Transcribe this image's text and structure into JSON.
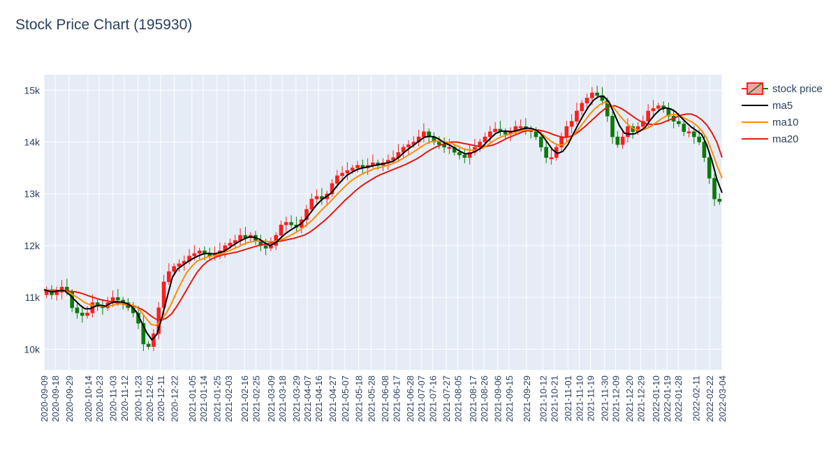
{
  "title": "Stock Price Chart (195930)",
  "colors": {
    "plot_bg": "#e5ecf6",
    "grid": "#ffffff",
    "up": "#ff1e1e",
    "down": "#0a7a0a",
    "ma5": "#000000",
    "ma10": "#ff8c00",
    "ma20": "#e8170f"
  },
  "chart_data": {
    "type": "candlestick",
    "title": "Stock Price Chart (195930)",
    "xlabel": "",
    "ylabel": "",
    "ylim": [
      9600,
      15300
    ],
    "xlim": [
      "2020-09-09",
      "2022-03-04"
    ],
    "grid": true,
    "legend_placement": "top-right",
    "y_ticks": [
      {
        "value": 10000,
        "label": "10k"
      },
      {
        "value": 11000,
        "label": "11k"
      },
      {
        "value": 12000,
        "label": "12k"
      },
      {
        "value": 13000,
        "label": "13k"
      },
      {
        "value": 14000,
        "label": "14k"
      },
      {
        "value": 15000,
        "label": "15k"
      }
    ],
    "x_ticks": [
      "2020-09-09",
      "2020-09-18",
      "2020-09-29",
      "2020-10-14",
      "2020-10-23",
      "2020-11-03",
      "2020-11-12",
      "2020-11-23",
      "2020-12-02",
      "2020-12-11",
      "2020-12-22",
      "2021-01-05",
      "2021-01-14",
      "2021-01-25",
      "2021-02-03",
      "2021-02-16",
      "2021-02-25",
      "2021-03-09",
      "2021-03-18",
      "2021-03-29",
      "2021-04-07",
      "2021-04-16",
      "2021-04-27",
      "2021-05-07",
      "2021-05-18",
      "2021-05-28",
      "2021-06-08",
      "2021-06-17",
      "2021-06-28",
      "2021-07-07",
      "2021-07-16",
      "2021-07-27",
      "2021-08-05",
      "2021-08-17",
      "2021-08-26",
      "2021-09-06",
      "2021-09-15",
      "2021-09-29",
      "2021-10-12",
      "2021-10-21",
      "2021-11-01",
      "2021-11-10",
      "2021-11-19",
      "2021-11-30",
      "2021-12-09",
      "2021-12-20",
      "2021-12-29",
      "2022-01-10",
      "2022-01-19",
      "2022-01-28",
      "2022-02-11",
      "2022-02-22",
      "2022-03-04"
    ],
    "series": [
      {
        "name": "stock price",
        "kind": "candlestick",
        "close": [
          11150,
          11050,
          11100,
          11200,
          11100,
          10800,
          10700,
          10650,
          10700,
          10900,
          10850,
          10800,
          10900,
          11000,
          10950,
          10900,
          10800,
          10700,
          10500,
          10100,
          10050,
          10300,
          10800,
          11300,
          11500,
          11600,
          11650,
          11700,
          11800,
          11850,
          11900,
          11850,
          11800,
          11850,
          11900,
          12000,
          12050,
          12100,
          12200,
          12150,
          12200,
          12100,
          12000,
          11950,
          12000,
          12200,
          12400,
          12450,
          12400,
          12350,
          12500,
          12700,
          12900,
          12950,
          12900,
          13000,
          13200,
          13350,
          13400,
          13450,
          13500,
          13550,
          13500,
          13550,
          13600,
          13550,
          13600,
          13650,
          13700,
          13800,
          13900,
          13950,
          14000,
          14100,
          14200,
          14100,
          14000,
          13950,
          13900,
          13900,
          13800,
          13750,
          13700,
          13800,
          13900,
          14000,
          14100,
          14200,
          14250,
          14200,
          14150,
          14200,
          14300,
          14300,
          14250,
          14200,
          14100,
          13900,
          13700,
          13700,
          13900,
          14100,
          14300,
          14400,
          14600,
          14750,
          14850,
          14950,
          14900,
          14800,
          14500,
          14100,
          13950,
          14100,
          14300,
          14200,
          14300,
          14400,
          14600,
          14650,
          14700,
          14650,
          14500,
          14400,
          14350,
          14200,
          14200,
          14100,
          14000,
          13700,
          13300,
          12900,
          12850
        ],
        "open": [
          11050,
          11150,
          11050,
          11100,
          11200,
          11100,
          10800,
          10700,
          10650,
          10700,
          10900,
          10850,
          10800,
          10900,
          11000,
          10950,
          10900,
          10800,
          10700,
          10500,
          10100,
          10050,
          10300,
          10800,
          11300,
          11500,
          11600,
          11650,
          11700,
          11800,
          11850,
          11900,
          11850,
          11800,
          11850,
          11900,
          12000,
          12050,
          12100,
          12200,
          12150,
          12200,
          12100,
          12000,
          11950,
          12000,
          12200,
          12400,
          12450,
          12400,
          12350,
          12500,
          12700,
          12900,
          12950,
          12900,
          13000,
          13200,
          13350,
          13400,
          13450,
          13500,
          13550,
          13500,
          13550,
          13600,
          13550,
          13600,
          13650,
          13700,
          13800,
          13900,
          13950,
          14000,
          14100,
          14200,
          14100,
          14000,
          13950,
          13900,
          13900,
          13800,
          13750,
          13700,
          13800,
          13900,
          14000,
          14100,
          14200,
          14250,
          14200,
          14150,
          14200,
          14300,
          14300,
          14250,
          14200,
          14100,
          13900,
          13700,
          13700,
          13900,
          14100,
          14300,
          14400,
          14600,
          14750,
          14850,
          14950,
          14900,
          14800,
          14500,
          14100,
          13950,
          14100,
          14300,
          14200,
          14300,
          14400,
          14600,
          14650,
          14700,
          14650,
          14500,
          14400,
          14350,
          14200,
          14200,
          14100,
          14000,
          13700,
          13300,
          12900
        ]
      },
      {
        "name": "ma5",
        "kind": "line",
        "values": [
          11150,
          11120,
          11110,
          11130,
          11130,
          11050,
          10950,
          10850,
          10780,
          10780,
          10830,
          10850,
          10830,
          10890,
          10920,
          10910,
          10890,
          10830,
          10720,
          10520,
          10320,
          10180,
          10290,
          10630,
          11010,
          11390,
          11550,
          11620,
          11690,
          11750,
          11800,
          11840,
          11850,
          11840,
          11860,
          11890,
          11950,
          12020,
          12080,
          12130,
          12170,
          12160,
          12120,
          12050,
          12000,
          12050,
          12140,
          12230,
          12300,
          12360,
          12420,
          12520,
          12650,
          12780,
          12880,
          12950,
          13020,
          13150,
          13260,
          13360,
          13420,
          13470,
          13500,
          13520,
          13540,
          13560,
          13580,
          13600,
          13630,
          13700,
          13790,
          13870,
          13940,
          14020,
          14090,
          14110,
          14100,
          14050,
          13980,
          13940,
          13880,
          13820,
          13770,
          13780,
          13820,
          13880,
          13980,
          14080,
          14170,
          14210,
          14210,
          14200,
          14220,
          14250,
          14270,
          14260,
          14220,
          14130,
          13990,
          13850,
          13780,
          13820,
          13950,
          14150,
          14340,
          14520,
          14680,
          14810,
          14880,
          14880,
          14770,
          14550,
          14320,
          14170,
          14150,
          14160,
          14210,
          14280,
          14420,
          14540,
          14630,
          14660,
          14640,
          14580,
          14480,
          14380,
          14290,
          14220,
          14150,
          13950,
          13650,
          13280,
          13020
        ]
      },
      {
        "name": "ma10",
        "kind": "line",
        "values": [
          11150,
          11140,
          11120,
          11120,
          11130,
          11090,
          11030,
          10970,
          10900,
          10860,
          10840,
          10830,
          10830,
          10840,
          10860,
          10880,
          10870,
          10860,
          10830,
          10730,
          10600,
          10480,
          10460,
          10560,
          10700,
          10880,
          11100,
          11300,
          11480,
          11600,
          11700,
          11740,
          11780,
          11800,
          11820,
          11850,
          11890,
          11930,
          11970,
          12020,
          12060,
          12080,
          12090,
          12090,
          12080,
          12080,
          12100,
          12130,
          12180,
          12230,
          12290,
          12360,
          12440,
          12530,
          12640,
          12740,
          12830,
          12940,
          13040,
          13140,
          13230,
          13300,
          13360,
          13410,
          13450,
          13490,
          13510,
          13540,
          13570,
          13610,
          13660,
          13720,
          13780,
          13840,
          13910,
          13970,
          14010,
          14020,
          14010,
          14000,
          13970,
          13930,
          13880,
          13850,
          13840,
          13850,
          13880,
          13940,
          14010,
          14070,
          14110,
          14140,
          14170,
          14200,
          14230,
          14240,
          14230,
          14200,
          14130,
          14050,
          13980,
          13940,
          13950,
          14040,
          14150,
          14270,
          14400,
          14530,
          14640,
          14720,
          14770,
          14740,
          14630,
          14500,
          14390,
          14300,
          14240,
          14230,
          14250,
          14300,
          14370,
          14440,
          14500,
          14530,
          14530,
          14490,
          14440,
          14390,
          14320,
          14220,
          14070,
          13820,
          13550,
          13300
        ]
      },
      {
        "name": "ma20",
        "kind": "line",
        "values": [
          11150,
          11140,
          11140,
          11130,
          11130,
          11120,
          11110,
          11090,
          11060,
          11020,
          10990,
          10960,
          10940,
          10920,
          10900,
          10880,
          10860,
          10840,
          10820,
          10780,
          10720,
          10640,
          10580,
          10560,
          10600,
          10680,
          10820,
          10980,
          11150,
          11320,
          11480,
          11600,
          11690,
          11750,
          11790,
          11820,
          11840,
          11860,
          11880,
          11910,
          11940,
          11970,
          12000,
          12020,
          12040,
          12060,
          12080,
          12100,
          12120,
          12140,
          12170,
          12200,
          12250,
          12320,
          12400,
          12480,
          12570,
          12670,
          12770,
          12870,
          12960,
          13050,
          13130,
          13200,
          13260,
          13320,
          13370,
          13410,
          13450,
          13490,
          13530,
          13570,
          13620,
          13670,
          13730,
          13800,
          13860,
          13910,
          13950,
          13980,
          14000,
          14000,
          13980,
          13960,
          13940,
          13920,
          13910,
          13920,
          13940,
          13980,
          14030,
          14080,
          14120,
          14160,
          14200,
          14220,
          14230,
          14230,
          14210,
          14180,
          14140,
          14110,
          14090,
          14100,
          14140,
          14210,
          14290,
          14380,
          14470,
          14560,
          14640,
          14690,
          14700,
          14660,
          14600,
          14530,
          14460,
          14400,
          14360,
          14340,
          14340,
          14360,
          14400,
          14440,
          14480,
          14520,
          14540,
          14540,
          14500,
          14430,
          14330,
          14180,
          13990,
          13700
        ]
      }
    ]
  },
  "legend": [
    {
      "key": "stock price",
      "label": "stock price",
      "kind": "candle"
    },
    {
      "key": "ma5",
      "label": "ma5",
      "kind": "line"
    },
    {
      "key": "ma10",
      "label": "ma10",
      "kind": "line"
    },
    {
      "key": "ma20",
      "label": "ma20",
      "kind": "line"
    }
  ]
}
